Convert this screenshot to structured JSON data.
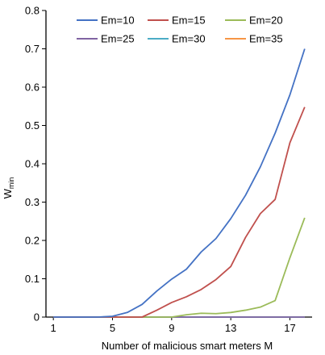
{
  "chart_data": {
    "type": "line",
    "xlabel": "Number of malicious smart meters M",
    "ylabel": "W",
    "ylabel_subscript": "min",
    "xlim": [
      0.5,
      18.5
    ],
    "ylim": [
      0,
      0.8
    ],
    "xticks": [
      1,
      5,
      9,
      13,
      17
    ],
    "yticks": [
      0,
      0.1,
      0.2,
      0.3,
      0.4,
      0.5,
      0.6,
      0.7,
      0.8
    ],
    "ytick_labels": [
      "0",
      "0.1",
      "0.2",
      "0.3",
      "0.4",
      "0.5",
      "0.6",
      "0.7",
      "0.8"
    ],
    "grid": false,
    "legend_position": "top",
    "x": [
      1,
      2,
      3,
      4,
      5,
      6,
      7,
      8,
      9,
      10,
      11,
      12,
      13,
      14,
      15,
      16,
      17,
      18
    ],
    "series": [
      {
        "name": "Em=10",
        "color": "#4472C4",
        "values": [
          0,
          0,
          0,
          0,
          0.002,
          0.012,
          0.033,
          0.068,
          0.099,
          0.125,
          0.17,
          0.205,
          0.257,
          0.318,
          0.392,
          0.48,
          0.58,
          0.7
        ]
      },
      {
        "name": "Em=15",
        "color": "#C0504D",
        "values": [
          0,
          0,
          0,
          0,
          0,
          0,
          0,
          0.018,
          0.038,
          0.053,
          0.072,
          0.098,
          0.132,
          0.208,
          0.27,
          0.307,
          0.455,
          0.548
        ]
      },
      {
        "name": "Em=20",
        "color": "#9BBB59",
        "values": [
          0,
          0,
          0,
          0,
          0,
          0,
          0,
          0,
          0,
          0.006,
          0.01,
          0.009,
          0.012,
          0.018,
          0.026,
          0.043,
          0.155,
          0.259
        ]
      },
      {
        "name": "Em=25",
        "color": "#8064A2",
        "values": [
          0,
          0,
          0,
          0,
          0,
          0,
          0,
          0,
          0,
          0,
          0,
          0,
          0,
          0,
          0,
          0,
          0,
          0
        ]
      },
      {
        "name": "Em=30",
        "color": "#4BACC6",
        "values": [
          0,
          0,
          0,
          0,
          0,
          0,
          0,
          0,
          0,
          0,
          0,
          0,
          0,
          0,
          0,
          0,
          0,
          0
        ]
      },
      {
        "name": "Em=35",
        "color": "#F79646",
        "values": [
          0,
          0,
          0,
          0,
          0,
          0,
          0,
          0,
          0,
          0,
          0,
          0,
          0,
          0,
          0,
          0,
          0,
          0
        ]
      }
    ]
  }
}
